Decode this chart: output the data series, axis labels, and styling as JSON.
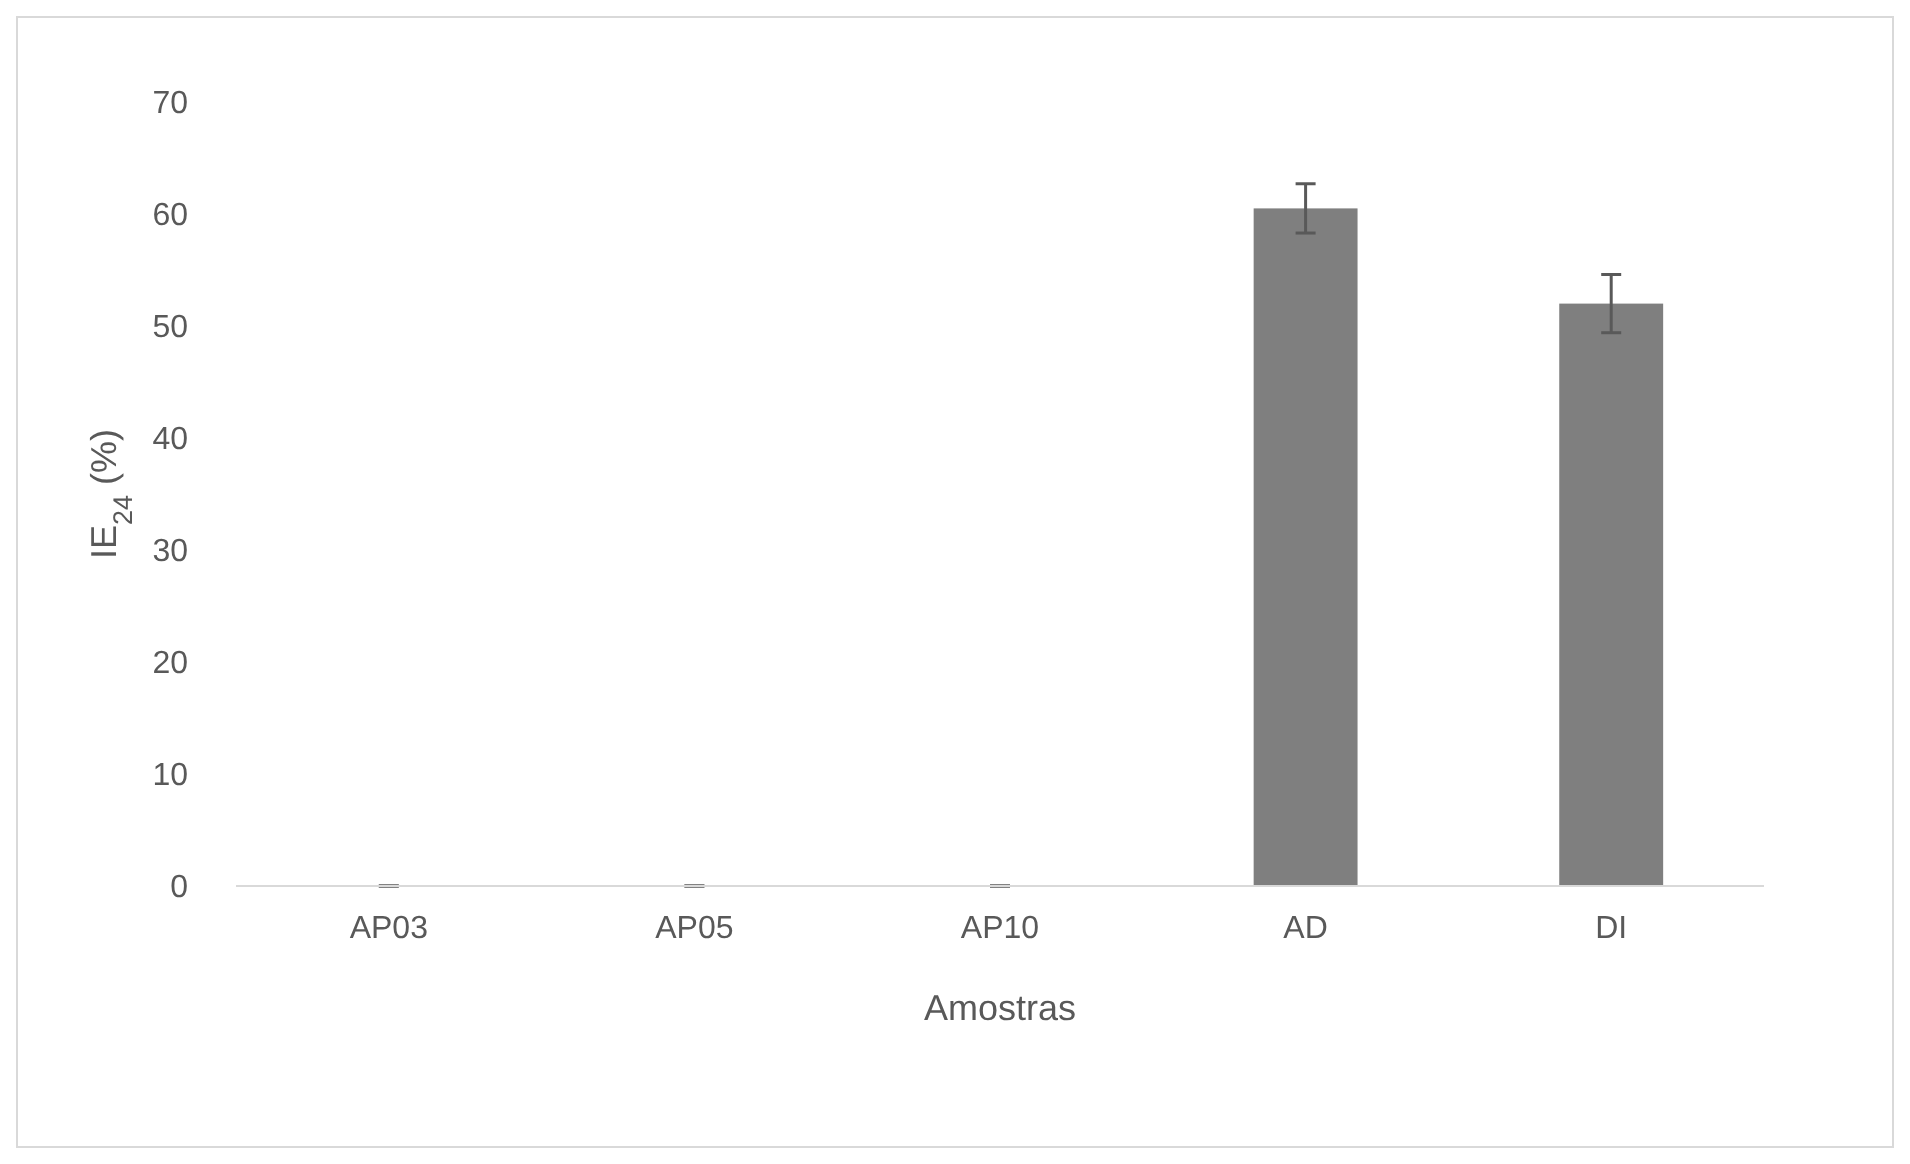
{
  "chart_data": {
    "type": "bar",
    "xlabel": "Amostras",
    "ylabel": "IE$_{24}$ (%)",
    "categories": [
      "AP03",
      "AP05",
      "AP10",
      "AD",
      "DI"
    ],
    "values": [
      0,
      0,
      0,
      60.5,
      52.0
    ],
    "errors": [
      0,
      0,
      0,
      2.2,
      2.6
    ],
    "color": "#7f7f7f",
    "ylim": [
      0,
      70
    ],
    "yticks": [
      0,
      10,
      20,
      30,
      40,
      50,
      60,
      70
    ],
    "grid": false
  }
}
